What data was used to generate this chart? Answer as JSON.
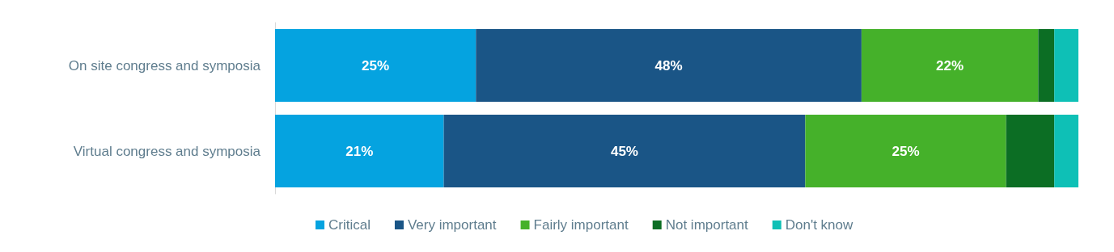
{
  "chart_data": {
    "type": "bar",
    "orientation": "horizontal",
    "stacked": true,
    "categories": [
      "On site congress and symposia",
      "Virtual congress and symposia"
    ],
    "series": [
      {
        "name": "Critical",
        "color": "#05a3e0",
        "values": [
          25,
          21
        ],
        "value_labels": [
          "25%",
          "21%"
        ]
      },
      {
        "name": "Very important",
        "color": "#1a5586",
        "values": [
          48,
          45
        ],
        "value_labels": [
          "48%",
          "45%"
        ]
      },
      {
        "name": "Fairly important",
        "color": "#45b12a",
        "values": [
          22,
          25
        ],
        "value_labels": [
          "22%",
          "25%"
        ]
      },
      {
        "name": "Not important",
        "color": "#0c6e24",
        "values": [
          2,
          6
        ],
        "value_labels": [
          null,
          null
        ]
      },
      {
        "name": "Don't know",
        "color": "#0ec0b6",
        "values": [
          3,
          3
        ],
        "value_labels": [
          null,
          null
        ]
      }
    ],
    "xlim": [
      0,
      100
    ],
    "tick_labels": "y",
    "grid": false,
    "legend": "bottom"
  }
}
